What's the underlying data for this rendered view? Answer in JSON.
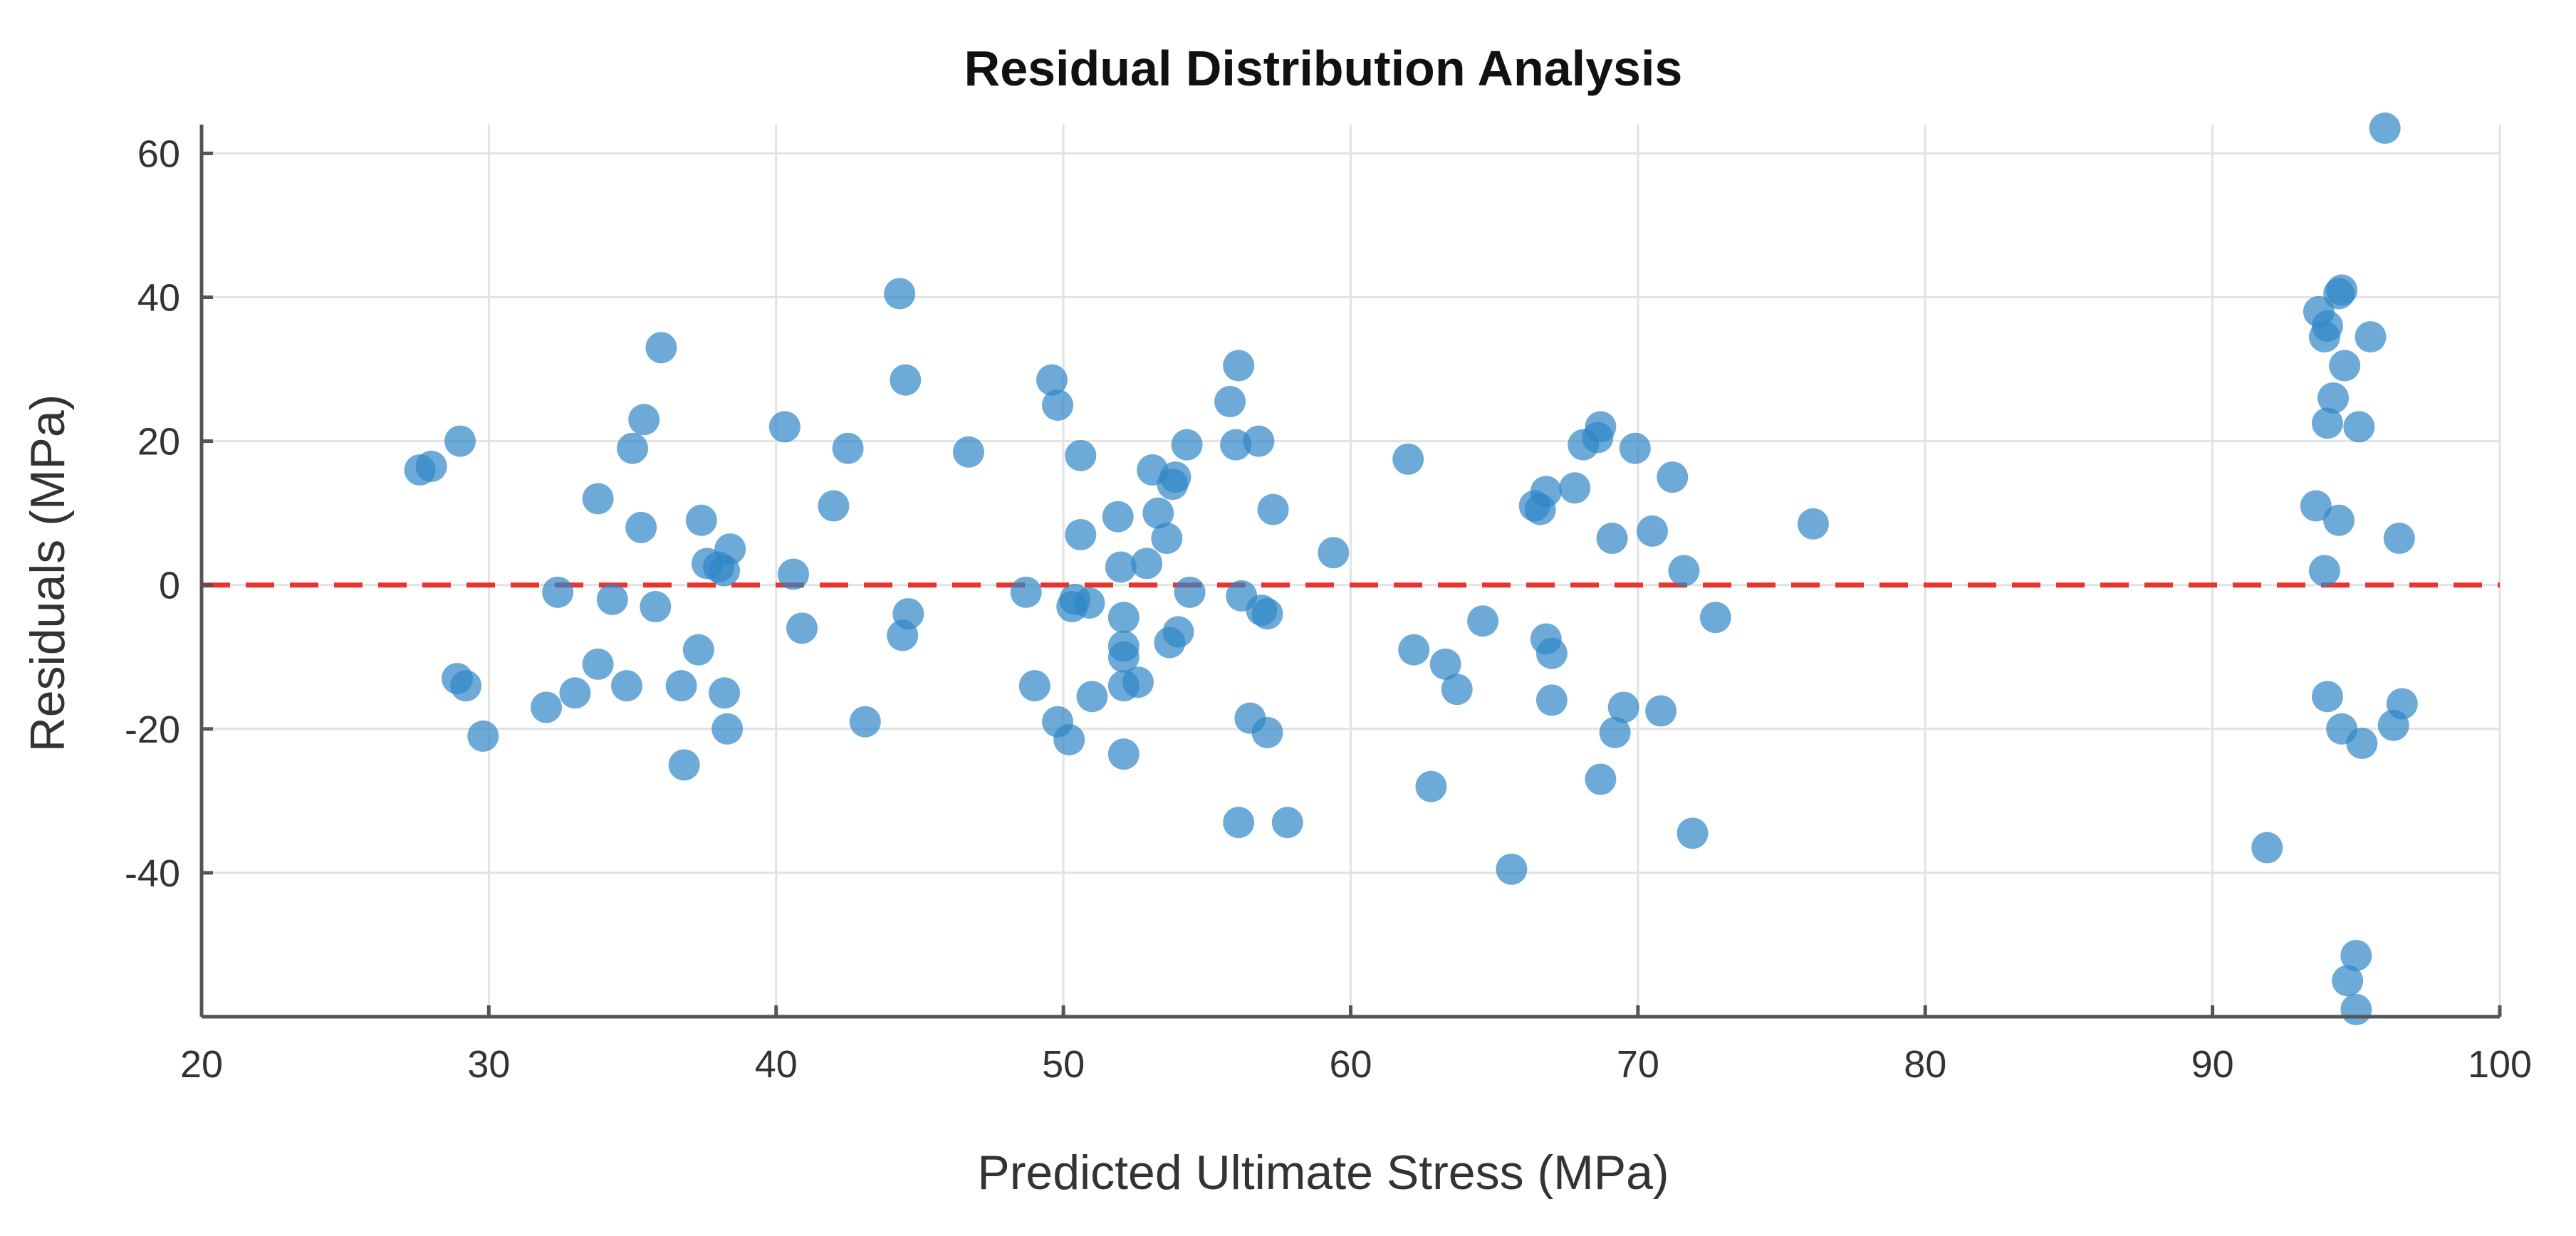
{
  "chart_data": {
    "type": "scatter",
    "title": "Residual Distribution Analysis",
    "xlabel": "Predicted Ultimate Stress (MPa)",
    "ylabel": "Residuals (MPa)",
    "xlim": [
      20,
      100
    ],
    "ylim": [
      -60,
      64
    ],
    "x_ticks": [
      20,
      30,
      40,
      50,
      60,
      70,
      80,
      90,
      100
    ],
    "y_ticks": [
      -40,
      -20,
      0,
      20,
      40,
      60
    ],
    "grid": true,
    "reference_line": {
      "y": 0,
      "style": "dashed",
      "color": "#e8332f"
    },
    "marker_color": "#2f86c8",
    "marker_opacity": 0.7,
    "series": [
      {
        "name": "Residuals",
        "points": [
          [
            27.6,
            16
          ],
          [
            28,
            16.5
          ],
          [
            29,
            20
          ],
          [
            28.9,
            -13
          ],
          [
            29.2,
            -14
          ],
          [
            29.8,
            -21
          ],
          [
            32,
            -17
          ],
          [
            32.4,
            -1
          ],
          [
            33,
            -15
          ],
          [
            33.8,
            12
          ],
          [
            33.8,
            -11
          ],
          [
            34.3,
            -2
          ],
          [
            34.8,
            -14
          ],
          [
            35,
            19
          ],
          [
            35.3,
            8
          ],
          [
            35.4,
            23
          ],
          [
            35.8,
            -3
          ],
          [
            36,
            33
          ],
          [
            36.7,
            -14
          ],
          [
            36.8,
            -25
          ],
          [
            37.3,
            -9
          ],
          [
            37.4,
            9
          ],
          [
            37.6,
            3
          ],
          [
            38,
            2.5
          ],
          [
            38.2,
            2
          ],
          [
            38.2,
            -15
          ],
          [
            38.3,
            -20
          ],
          [
            38.4,
            5
          ],
          [
            40.3,
            22
          ],
          [
            40.6,
            1.5
          ],
          [
            40.9,
            -6
          ],
          [
            42,
            11
          ],
          [
            42.5,
            19
          ],
          [
            43.1,
            -19
          ],
          [
            44.3,
            40.5
          ],
          [
            44.4,
            -7
          ],
          [
            44.5,
            28.5
          ],
          [
            44.6,
            -4
          ],
          [
            46.7,
            18.5
          ],
          [
            48.7,
            -1
          ],
          [
            49,
            -14
          ],
          [
            49.6,
            28.5
          ],
          [
            49.8,
            25
          ],
          [
            49.8,
            -19
          ],
          [
            50.2,
            -21.5
          ],
          [
            50.3,
            -3
          ],
          [
            50.4,
            -2
          ],
          [
            50.6,
            18
          ],
          [
            50.6,
            7
          ],
          [
            50.9,
            -2.5
          ],
          [
            51,
            -15.5
          ],
          [
            51.9,
            9.5
          ],
          [
            52,
            2.5
          ],
          [
            52.1,
            -4.5
          ],
          [
            52.1,
            -8.5
          ],
          [
            52.1,
            -10
          ],
          [
            52.1,
            -14
          ],
          [
            52.1,
            -23.5
          ],
          [
            52.6,
            -13.5
          ],
          [
            52.9,
            3
          ],
          [
            53.1,
            16
          ],
          [
            53.3,
            10
          ],
          [
            53.6,
            6.5
          ],
          [
            53.7,
            -8
          ],
          [
            53.8,
            14
          ],
          [
            53.9,
            15
          ],
          [
            54,
            -6.5
          ],
          [
            54.3,
            19.5
          ],
          [
            54.4,
            -1
          ],
          [
            55.8,
            25.5
          ],
          [
            56,
            19.5
          ],
          [
            56.1,
            30.5
          ],
          [
            56.1,
            -33
          ],
          [
            56.2,
            -1.5
          ],
          [
            56.5,
            -18.5
          ],
          [
            56.8,
            20
          ],
          [
            56.9,
            -3.5
          ],
          [
            57.1,
            -4
          ],
          [
            57.1,
            -20.5
          ],
          [
            57.3,
            10.5
          ],
          [
            57.8,
            -33
          ],
          [
            59.4,
            4.5
          ],
          [
            62,
            17.5
          ],
          [
            62.2,
            -9
          ],
          [
            62.8,
            -28
          ],
          [
            63.3,
            -11
          ],
          [
            63.7,
            -14.5
          ],
          [
            64.6,
            -5
          ],
          [
            65.6,
            -39.5
          ],
          [
            66.4,
            11
          ],
          [
            66.6,
            10.5
          ],
          [
            66.8,
            13
          ],
          [
            66.8,
            -7.5
          ],
          [
            67,
            -9.5
          ],
          [
            67,
            -16
          ],
          [
            67.8,
            13.5
          ],
          [
            68.1,
            19.5
          ],
          [
            68.6,
            20.5
          ],
          [
            68.7,
            22
          ],
          [
            68.7,
            -27
          ],
          [
            69.1,
            6.5
          ],
          [
            69.2,
            -20.5
          ],
          [
            69.5,
            -17
          ],
          [
            69.9,
            19
          ],
          [
            70.5,
            7.5
          ],
          [
            70.8,
            -17.5
          ],
          [
            71.2,
            15
          ],
          [
            71.6,
            2
          ],
          [
            71.9,
            -34.5
          ],
          [
            72.7,
            -4.5
          ],
          [
            76.1,
            8.5
          ],
          [
            91.9,
            -36.5
          ],
          [
            93.6,
            11
          ],
          [
            93.7,
            38
          ],
          [
            93.9,
            2
          ],
          [
            93.9,
            34.5
          ],
          [
            94,
            36
          ],
          [
            94,
            22.5
          ],
          [
            94,
            -15.5
          ],
          [
            94.2,
            26
          ],
          [
            94.4,
            9
          ],
          [
            94.4,
            40.5
          ],
          [
            94.5,
            41
          ],
          [
            94.5,
            -20
          ],
          [
            94.6,
            30.5
          ],
          [
            94.7,
            -55
          ],
          [
            95,
            -51.5
          ],
          [
            95,
            -59
          ],
          [
            95.1,
            22
          ],
          [
            95.2,
            -22
          ],
          [
            95.5,
            34.5
          ],
          [
            96,
            63.5
          ],
          [
            96.3,
            -19.5
          ],
          [
            96.5,
            6.5
          ],
          [
            96.6,
            -16.5
          ]
        ]
      }
    ]
  }
}
